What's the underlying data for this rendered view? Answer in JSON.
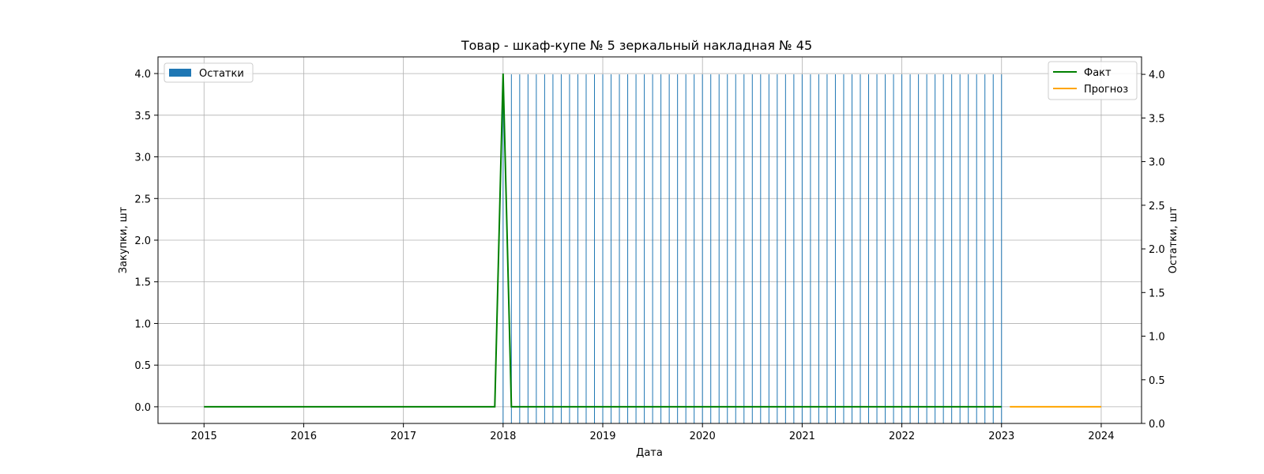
{
  "chart_data": {
    "type": "bar+line",
    "title": "Товар - шкаф-купе № 5 зеркальный накладная № 45",
    "xlabel": "Дата",
    "ylabel_left": "Закупки, шт",
    "ylabel_right": "Остатки, шт",
    "xlim": [
      "2014-07-15",
      "2024-05-27"
    ],
    "ylim_left": [
      -0.2,
      4.2
    ],
    "ylim_right": [
      0.0,
      4.2
    ],
    "x_ticks": [
      "2015",
      "2016",
      "2017",
      "2018",
      "2019",
      "2020",
      "2021",
      "2022",
      "2023",
      "2024"
    ],
    "y_ticks_left": [
      "0.0",
      "0.5",
      "1.0",
      "1.5",
      "2.0",
      "2.5",
      "3.0",
      "3.5",
      "4.0"
    ],
    "y_ticks_right": [
      "0.0",
      "0.5",
      "1.0",
      "1.5",
      "2.0",
      "2.5",
      "3.0",
      "3.5",
      "4.0"
    ],
    "grid": true,
    "legend_left": {
      "position": "top-left",
      "entries": [
        {
          "label": "Остатки",
          "color": "#1f77b4"
        }
      ]
    },
    "legend_right": {
      "position": "top-right",
      "entries": [
        {
          "label": "Факт",
          "color": "#008000"
        },
        {
          "label": "Прогноз",
          "color": "#ffa500"
        }
      ]
    },
    "bars": {
      "name": "Остатки",
      "color": "#1f77b4",
      "axis": "right",
      "start": "2018-01",
      "end": "2023-01",
      "value": 4.0
    },
    "series": [
      {
        "name": "Факт",
        "color": "#008000",
        "axis": "left",
        "points": [
          [
            "2015-01",
            0
          ],
          [
            "2017-12",
            0
          ],
          [
            "2018-01",
            4
          ],
          [
            "2018-02",
            0
          ],
          [
            "2023-01",
            0
          ]
        ]
      },
      {
        "name": "Прогноз",
        "color": "#ffa500",
        "axis": "left",
        "points": [
          [
            "2023-02",
            0
          ],
          [
            "2024-01",
            0
          ]
        ]
      }
    ]
  }
}
